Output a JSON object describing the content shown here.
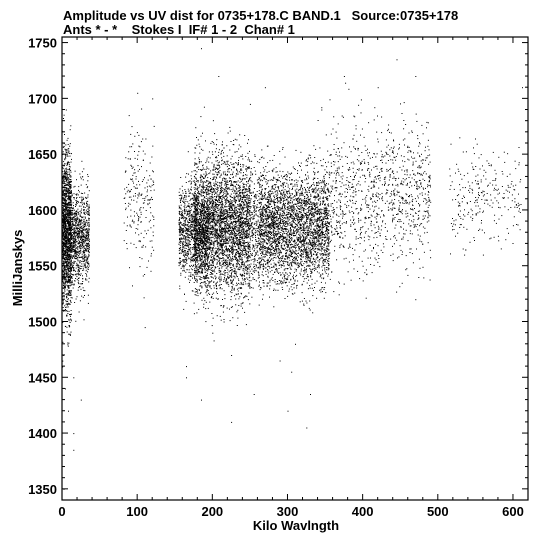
{
  "header": {
    "line1": "Amplitude vs UV dist for 0735+178.C BAND.1   Source:0735+178",
    "line2": "Ants * - *    Stokes I  IF# 1 - 2  Chan# 1"
  },
  "chart_data": {
    "type": "scatter",
    "title": "Amplitude vs UV dist for 0735+178.C BAND.1   Source:0735+178",
    "subtitle": "Ants * - *    Stokes I  IF# 1 - 2  Chan# 1",
    "xlabel": "Kilo Wavlngth",
    "ylabel": "MilliJanskys",
    "xlim": [
      0,
      620
    ],
    "ylim": [
      1340,
      1755
    ],
    "xticks": [
      0,
      100,
      200,
      300,
      400,
      500,
      600
    ],
    "yticks": [
      1350,
      1400,
      1450,
      1500,
      1550,
      1600,
      1650,
      1700,
      1750
    ],
    "grid": false,
    "legend": "none",
    "marker_color": "#000000",
    "clusters": [
      {
        "x_range": [
          0,
          12
        ],
        "y_center": 1578,
        "y_spread": 34,
        "density": 1600
      },
      {
        "x_range": [
          12,
          36
        ],
        "y_center": 1575,
        "y_spread": 22,
        "density": 900
      },
      {
        "x_range": [
          82,
          122
        ],
        "y_center": 1612,
        "y_spread": 30,
        "density": 220
      },
      {
        "x_range": [
          155,
          195
        ],
        "y_center": 1580,
        "y_spread": 22,
        "density": 1100
      },
      {
        "x_range": [
          175,
          250
        ],
        "y_center": 1585,
        "y_spread": 30,
        "density": 3600
      },
      {
        "x_range": [
          250,
          262
        ],
        "y_center": 1585,
        "y_spread": 25,
        "density": 250
      },
      {
        "x_range": [
          262,
          355
        ],
        "y_center": 1585,
        "y_spread": 25,
        "density": 3200
      },
      {
        "x_range": [
          355,
          400
        ],
        "y_center": 1612,
        "y_spread": 32,
        "density": 350
      },
      {
        "x_range": [
          400,
          490
        ],
        "y_center": 1612,
        "y_spread": 30,
        "density": 700
      },
      {
        "x_range": [
          515,
          610
        ],
        "y_center": 1612,
        "y_spread": 22,
        "density": 260
      }
    ],
    "outliers": [
      {
        "x": 2,
        "y": 1710
      },
      {
        "x": 5,
        "y": 1690
      },
      {
        "x": 1,
        "y": 1470
      },
      {
        "x": 4,
        "y": 1440
      },
      {
        "x": 15,
        "y": 1450
      },
      {
        "x": 15,
        "y": 1400
      },
      {
        "x": 15,
        "y": 1385
      },
      {
        "x": 25,
        "y": 1430
      },
      {
        "x": 2,
        "y": 1350
      },
      {
        "x": 8,
        "y": 1420
      },
      {
        "x": 100,
        "y": 1705
      },
      {
        "x": 120,
        "y": 1700
      },
      {
        "x": 110,
        "y": 1495
      },
      {
        "x": 165,
        "y": 1460
      },
      {
        "x": 165,
        "y": 1450
      },
      {
        "x": 185,
        "y": 1430
      },
      {
        "x": 185,
        "y": 1745
      },
      {
        "x": 208,
        "y": 1720
      },
      {
        "x": 210,
        "y": 1505
      },
      {
        "x": 215,
        "y": 1500
      },
      {
        "x": 200,
        "y": 1490
      },
      {
        "x": 225,
        "y": 1470
      },
      {
        "x": 225,
        "y": 1410
      },
      {
        "x": 255,
        "y": 1435
      },
      {
        "x": 300,
        "y": 1420
      },
      {
        "x": 305,
        "y": 1455
      },
      {
        "x": 310,
        "y": 1480
      },
      {
        "x": 325,
        "y": 1405
      },
      {
        "x": 330,
        "y": 1435
      },
      {
        "x": 345,
        "y": 1690
      },
      {
        "x": 375,
        "y": 1720
      },
      {
        "x": 420,
        "y": 1710
      },
      {
        "x": 445,
        "y": 1735
      },
      {
        "x": 470,
        "y": 1720
      },
      {
        "x": 470,
        "y": 1520
      },
      {
        "x": 440,
        "y": 1555
      },
      {
        "x": 400,
        "y": 1550
      },
      {
        "x": 380,
        "y": 1545
      },
      {
        "x": 270,
        "y": 1710
      },
      {
        "x": 250,
        "y": 1695
      },
      {
        "x": 612,
        "y": 1710
      },
      {
        "x": 560,
        "y": 1560
      },
      {
        "x": 535,
        "y": 1560
      }
    ]
  }
}
